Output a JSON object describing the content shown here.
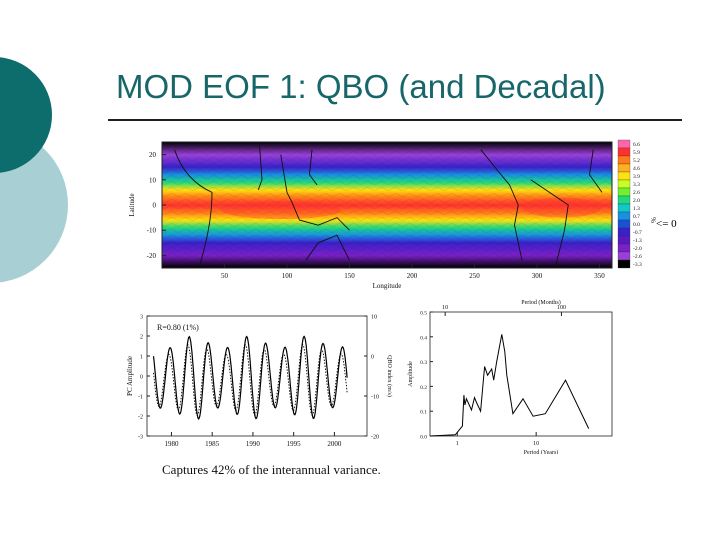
{
  "slide": {
    "title": "MOD EOF 1: QBO (and Decadal)",
    "caption": "Captures 42% of the interannual variance.",
    "annotation_zero": "<= 0"
  },
  "colors": {
    "title": "#17666a",
    "deco_dark": "#0d6d6d",
    "deco_light": "#a8cfd4"
  },
  "chart_data": [
    {
      "type": "heatmap",
      "title": "",
      "xlabel": "Longitude",
      "ylabel": "Latitude",
      "xlim": [
        0,
        360
      ],
      "ylim": [
        -25,
        25
      ],
      "xticks": [
        50,
        100,
        150,
        200,
        250,
        300,
        350
      ],
      "yticks": [
        20,
        10,
        0,
        -10,
        -20
      ],
      "colorbar": {
        "label": "%",
        "values": [
          "6.6",
          "5.9",
          "5.2",
          "4.6",
          "3.9",
          "3.3",
          "2.6",
          "2.0",
          "1.3",
          "0.7",
          "0.0",
          "-0.7",
          "-1.3",
          "-2.0",
          "-2.6",
          "-3.3"
        ],
        "colors": [
          "#ff66aa",
          "#ff3030",
          "#ff7a1a",
          "#ffb020",
          "#ffe010",
          "#c8ff20",
          "#70f030",
          "#20d880",
          "#10c8c8",
          "#1890e0",
          "#1850d8",
          "#3a20c8",
          "#5a18c0",
          "#7a20c8",
          "#9a40d8",
          "#000000"
        ]
      },
      "latitude_profile": [
        {
          "lat": 25,
          "value": -3.2
        },
        {
          "lat": 20,
          "value": -2.4
        },
        {
          "lat": 15,
          "value": -0.8
        },
        {
          "lat": 12,
          "value": 0.5
        },
        {
          "lat": 9,
          "value": 2.0
        },
        {
          "lat": 6,
          "value": 3.6
        },
        {
          "lat": 3,
          "value": 5.0
        },
        {
          "lat": 0,
          "value": 5.9
        },
        {
          "lat": -3,
          "value": 5.2
        },
        {
          "lat": -6,
          "value": 3.9
        },
        {
          "lat": -9,
          "value": 2.3
        },
        {
          "lat": -12,
          "value": 0.8
        },
        {
          "lat": -15,
          "value": -0.6
        },
        {
          "lat": -20,
          "value": -2.2
        },
        {
          "lat": -25,
          "value": -3.0
        }
      ]
    },
    {
      "type": "line",
      "title": "",
      "annotation": "R=0.80 (1%)",
      "xlabel": "",
      "ylabel": "PC Amplitude",
      "y2label": "QBO index (m/s)",
      "xlim": [
        1977,
        2004
      ],
      "ylim": [
        -3,
        3
      ],
      "y2lim": [
        -20,
        10
      ],
      "xticks": [
        1980,
        1985,
        1990,
        1995,
        2000
      ],
      "xtick_labels": [
        "1980",
        "1985",
        "1990",
        "1995",
        "2000"
      ],
      "yticks": [
        3,
        2,
        1,
        0,
        -1,
        -2,
        -3
      ],
      "y2ticks": [
        10,
        0,
        -10,
        -20
      ],
      "series": [
        {
          "style": "solid",
          "period_years": 2.35,
          "phase": 0.3,
          "amplitude": 2.1,
          "offset": -0.1
        },
        {
          "style": "dotted",
          "period_years": 2.35,
          "phase": 0.75,
          "amplitude": 1.8,
          "offset": -0.2
        }
      ]
    },
    {
      "type": "line",
      "title": "",
      "xlabel": "Period (Years)",
      "ylabel": "Amplitude",
      "x2label": "Period (Months)",
      "xlim": [
        0,
        18
      ],
      "ylim": [
        0,
        0.5
      ],
      "xticks": [
        1,
        10
      ],
      "x2ticks": [
        10,
        100
      ],
      "yticks": [
        0.0,
        0.1,
        0.2,
        0.3,
        0.4,
        0.5
      ],
      "ytick_labels": [
        "0.0",
        "0.1",
        "0.2",
        "0.3",
        "0.4",
        "0.5"
      ],
      "series": [
        {
          "x": [
            0,
            2.5,
            3.2,
            3.35,
            3.45,
            3.6,
            4.1,
            4.4,
            4.6,
            5.0,
            5.4,
            5.7,
            6.1,
            6.3,
            6.6,
            7.1,
            7.4,
            7.6,
            8.2,
            9.2,
            10.2,
            11.4,
            13.4,
            15.7
          ],
          "y": [
            0,
            0.005,
            0.04,
            0.165,
            0.125,
            0.15,
            0.105,
            0.155,
            0.135,
            0.1,
            0.28,
            0.245,
            0.27,
            0.225,
            0.3,
            0.41,
            0.34,
            0.245,
            0.09,
            0.15,
            0.08,
            0.09,
            0.225,
            0.03
          ]
        }
      ]
    }
  ]
}
